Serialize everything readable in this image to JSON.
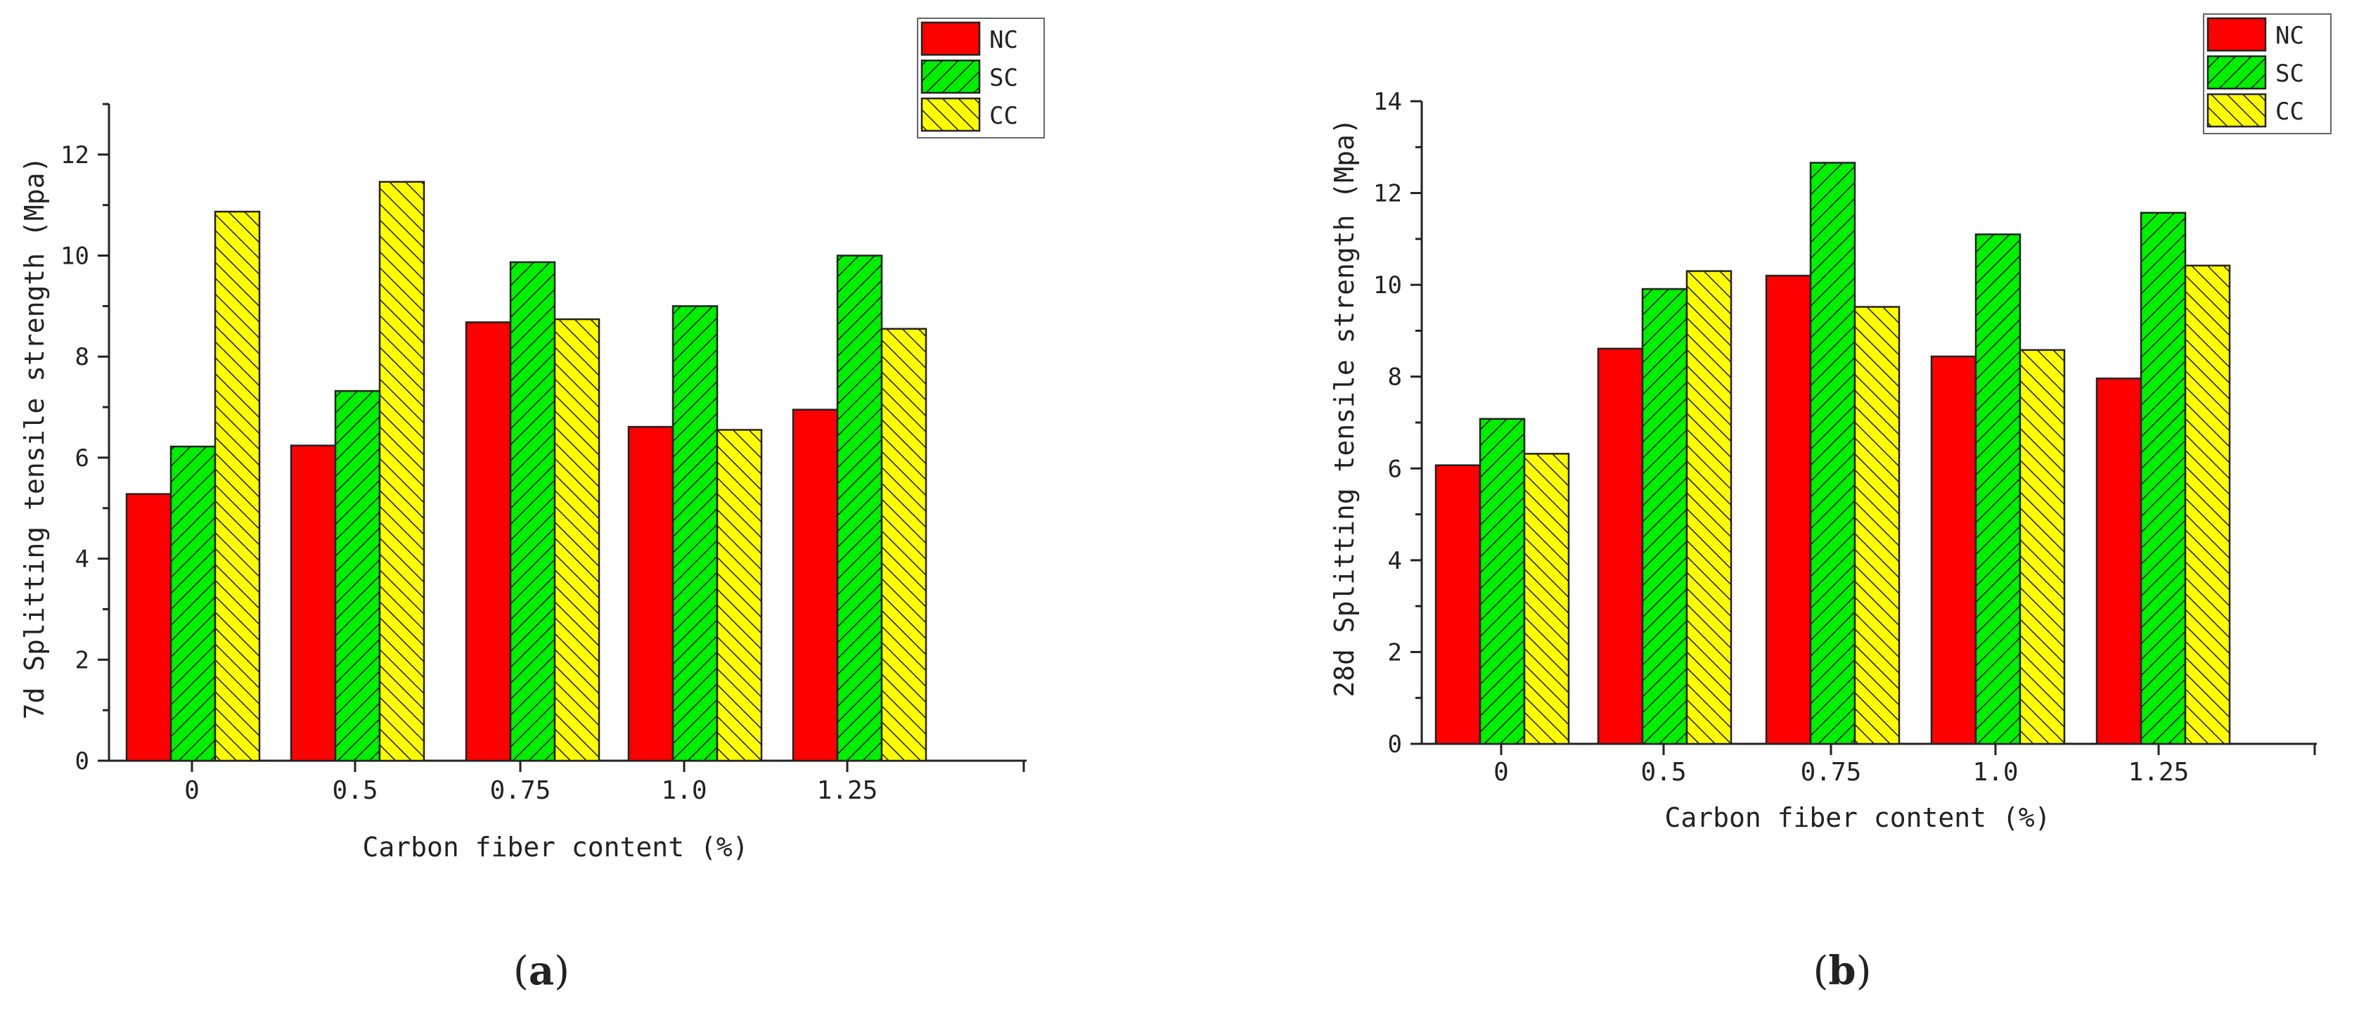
{
  "colors": {
    "NC": "#ff0000",
    "SC": "#00ee00",
    "CC": "#ffff00",
    "edge": "#222222"
  },
  "chart_data": [
    {
      "type": "bar",
      "panel_label": "(a)",
      "panel_letter": "a",
      "categories": [
        "0",
        "0.5",
        "0.75",
        "1.0",
        "1.25"
      ],
      "series": [
        {
          "name": "NC",
          "values": [
            5.28,
            6.24,
            8.68,
            6.61,
            6.95
          ]
        },
        {
          "name": "SC",
          "values": [
            6.22,
            7.32,
            9.87,
            9.0,
            10.0
          ]
        },
        {
          "name": "CC",
          "values": [
            10.87,
            11.46,
            8.74,
            6.55,
            8.55
          ]
        }
      ],
      "xlabel": "Carbon fiber content (%)",
      "ylabel": "7d Splitting tensile strength (Mpa)",
      "ylim": [
        0,
        13
      ],
      "yticks": [
        "0",
        "2",
        "4",
        "6",
        "8",
        "10",
        "12"
      ],
      "legend": "top-right"
    },
    {
      "type": "bar",
      "panel_label": "(b)",
      "panel_letter": "b",
      "categories": [
        "0",
        "0.5",
        "0.75",
        "1.0",
        "1.25"
      ],
      "series": [
        {
          "name": "NC",
          "values": [
            6.07,
            8.61,
            10.2,
            8.44,
            7.96
          ]
        },
        {
          "name": "SC",
          "values": [
            7.08,
            9.91,
            12.66,
            11.1,
            11.57
          ]
        },
        {
          "name": "CC",
          "values": [
            6.32,
            10.3,
            9.52,
            8.58,
            10.42
          ]
        }
      ],
      "xlabel": "Carbon fiber content (%)",
      "ylabel": "28d Splitting tensile strength (Mpa)",
      "ylim": [
        0,
        14
      ],
      "yticks": [
        "0",
        "2",
        "4",
        "6",
        "8",
        "10",
        "12",
        "14"
      ],
      "legend": "top-right"
    }
  ]
}
